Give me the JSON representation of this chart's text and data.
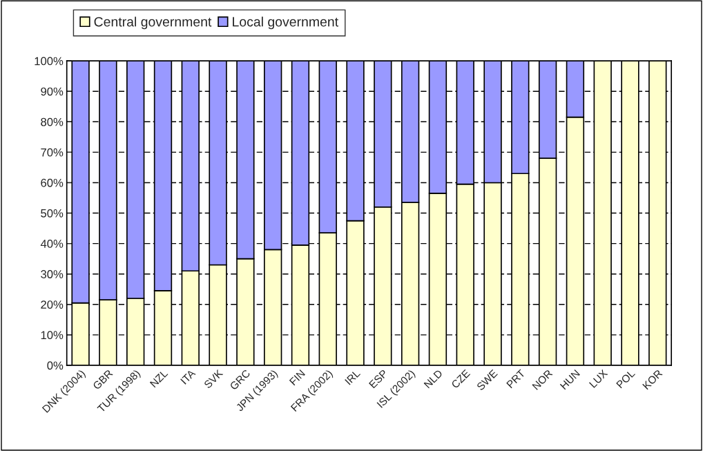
{
  "chart_data": {
    "type": "bar",
    "stacked": true,
    "categories": [
      "DNK (2004)",
      "GBR",
      "TUR (1998)",
      "NZL",
      "ITA",
      "SVK",
      "GRC",
      "JPN (1993)",
      "FIN",
      "FRA (2002)",
      "IRL",
      "ESP",
      "ISL (2002)",
      "NLD",
      "CZE",
      "SWE",
      "PRT",
      "NOR",
      "HUN",
      "LUX",
      "POL",
      "KOR"
    ],
    "series": [
      {
        "name": "Central government",
        "color": "#ffffcc",
        "values": [
          20.5,
          21.5,
          22,
          24.5,
          31,
          33,
          35,
          38,
          39.5,
          43.5,
          47.5,
          52,
          53.5,
          56.5,
          59.5,
          60,
          63,
          68,
          81.5,
          100,
          100,
          100
        ]
      },
      {
        "name": "Local government",
        "color": "#9999ff",
        "values": [
          79.5,
          78.5,
          78,
          75.5,
          69,
          67,
          65,
          62,
          60.5,
          56.5,
          52.5,
          48,
          46.5,
          43.5,
          40.5,
          40,
          37,
          32,
          18.5,
          null,
          null,
          null
        ]
      }
    ],
    "ylim": [
      0,
      100
    ],
    "yticks": [
      {
        "value": 0,
        "label": "0%"
      },
      {
        "value": 10,
        "label": "10%"
      },
      {
        "value": 20,
        "label": "20%"
      },
      {
        "value": 30,
        "label": "30%"
      },
      {
        "value": 40,
        "label": "40%"
      },
      {
        "value": 50,
        "label": "50%"
      },
      {
        "value": 60,
        "label": "60%"
      },
      {
        "value": 70,
        "label": "70%"
      },
      {
        "value": 80,
        "label": "80%"
      },
      {
        "value": 90,
        "label": "90%"
      },
      {
        "value": 100,
        "label": "100%"
      }
    ],
    "grid": "y",
    "legend": "top",
    "line_style": "dashed"
  }
}
